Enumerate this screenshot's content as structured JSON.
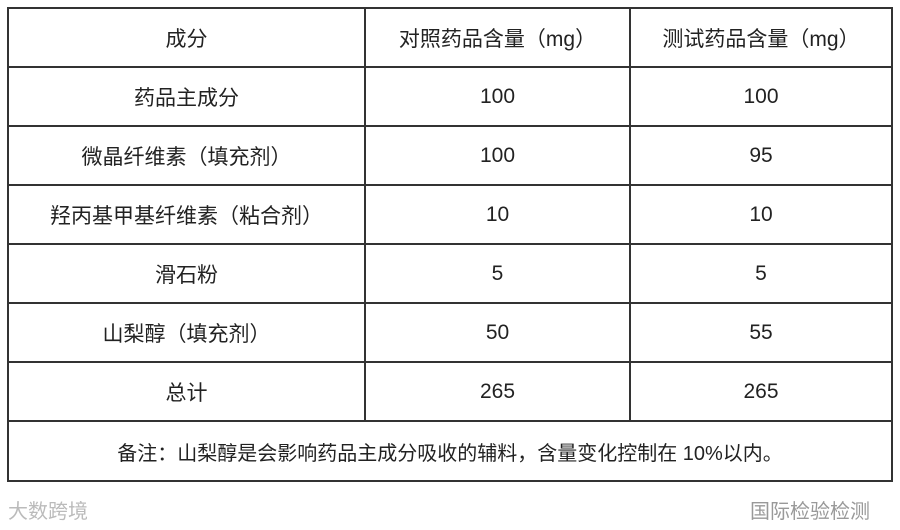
{
  "table": {
    "headers": [
      "成分",
      "对照药品含量（mg）",
      "测试药品含量（mg）"
    ],
    "rows": [
      [
        "药品主成分",
        "100",
        "100"
      ],
      [
        "微晶纤维素（填充剂）",
        "100",
        "95"
      ],
      [
        "羟丙基甲基纤维素（粘合剂）",
        "10",
        "10"
      ],
      [
        "滑石粉",
        "5",
        "5"
      ],
      [
        "山梨醇（填充剂）",
        "50",
        "55"
      ],
      [
        "总计",
        "265",
        "265"
      ]
    ],
    "note": "备注：山梨醇是会影响药品主成分吸收的辅料，含量变化控制在 10%以内。"
  },
  "watermarks": {
    "left": "大数跨境",
    "right": "国际检验检测"
  }
}
